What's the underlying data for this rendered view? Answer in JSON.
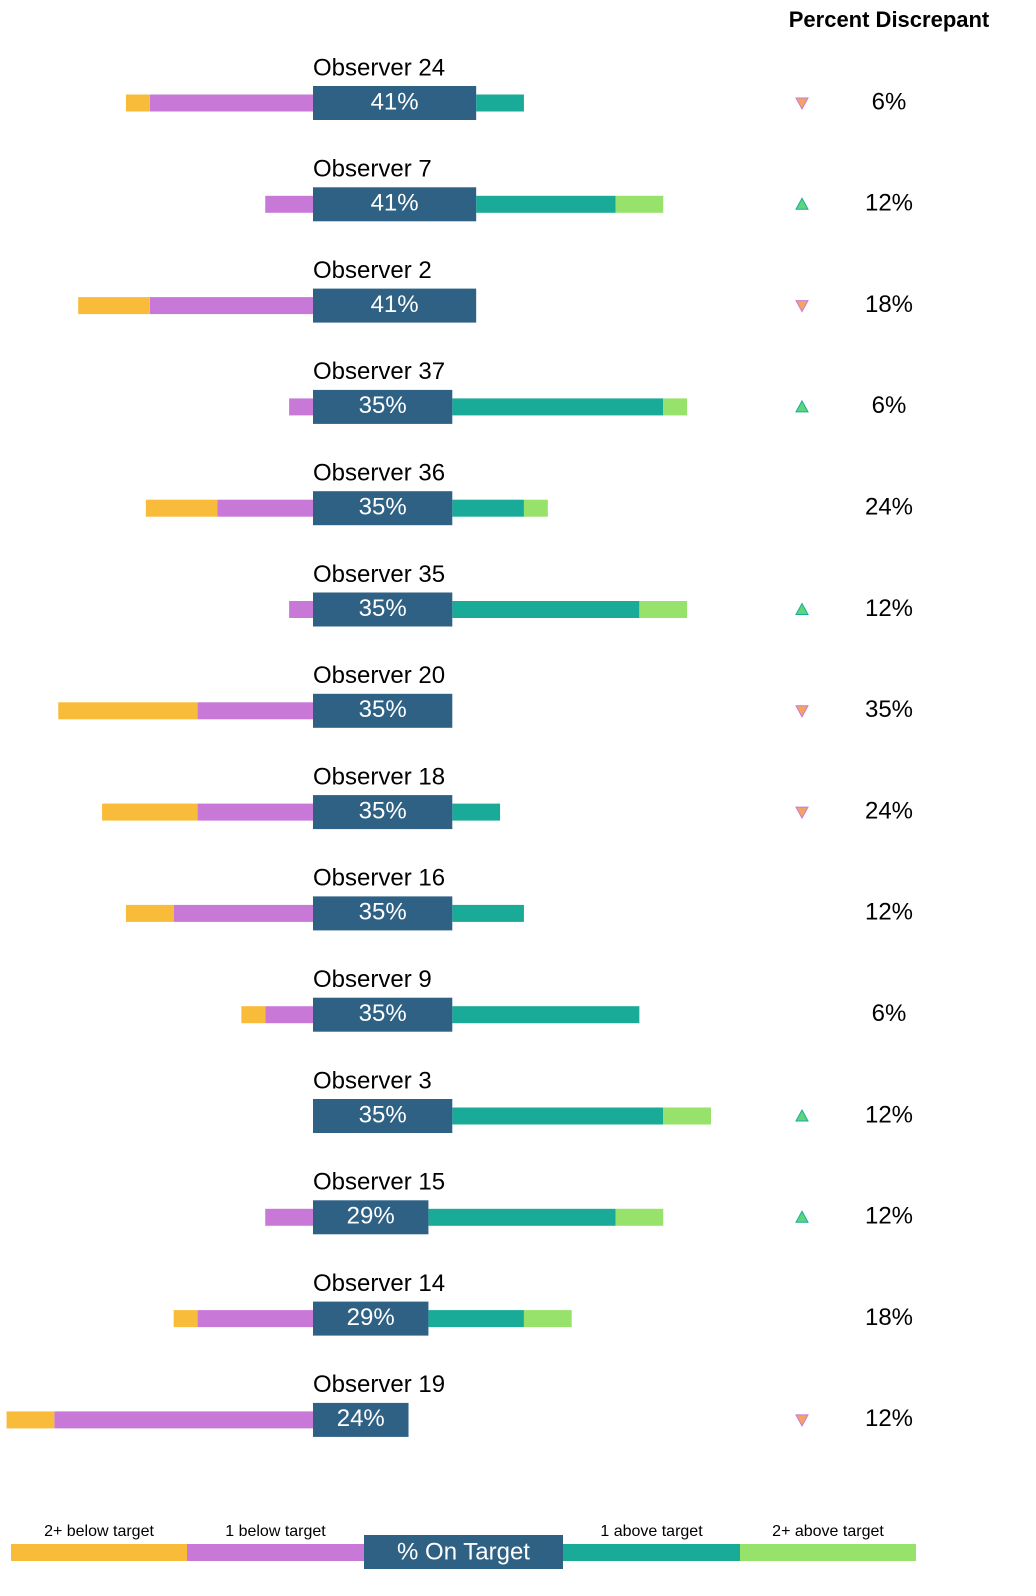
{
  "chart_data": {
    "type": "diverging_bar",
    "categories": [
      "Observer 24",
      "Observer 7",
      "Observer 2",
      "Observer 37",
      "Observer 36",
      "Observer 35",
      "Observer 20",
      "Observer 18",
      "Observer 16",
      "Observer 9",
      "Observer 3",
      "Observer 15",
      "Observer 14",
      "Observer 19"
    ],
    "series": [
      {
        "name": "2+ below target",
        "color": "#f8bc3a",
        "side": "below",
        "values": [
          6,
          0,
          18,
          0,
          18,
          0,
          35,
          24,
          12,
          6,
          0,
          0,
          6,
          12
        ]
      },
      {
        "name": "1 below target",
        "color": "#c879d8",
        "side": "below",
        "values": [
          41,
          12,
          41,
          6,
          24,
          6,
          29,
          29,
          35,
          12,
          0,
          12,
          29,
          65
        ]
      },
      {
        "name": "% On Target",
        "color": "#2e6184",
        "side": "target",
        "values": [
          41,
          41,
          41,
          35,
          35,
          35,
          35,
          35,
          35,
          35,
          35,
          29,
          29,
          24
        ],
        "value_labels": [
          "41%",
          "41%",
          "41%",
          "35%",
          "35%",
          "35%",
          "35%",
          "35%",
          "35%",
          "35%",
          "35%",
          "29%",
          "29%",
          "24%"
        ]
      },
      {
        "name": "1 above target",
        "color": "#1aab98",
        "side": "above",
        "values": [
          12,
          35,
          0,
          53,
          18,
          47,
          0,
          12,
          18,
          47,
          53,
          47,
          24,
          0
        ]
      },
      {
        "name": "2+ above target",
        "color": "#96e26a",
        "side": "above",
        "values": [
          0,
          12,
          0,
          6,
          6,
          12,
          0,
          0,
          0,
          0,
          12,
          12,
          12,
          0
        ]
      }
    ],
    "discrepant": {
      "name": "Percent Discrepant",
      "values": [
        6,
        12,
        18,
        6,
        24,
        12,
        35,
        24,
        12,
        6,
        12,
        12,
        18,
        12
      ],
      "value_labels": [
        "6%",
        "12%",
        "18%",
        "6%",
        "24%",
        "12%",
        "35%",
        "24%",
        "12%",
        "6%",
        "12%",
        "12%",
        "18%",
        "12%"
      ],
      "direction": [
        "down",
        "up",
        "down",
        "up",
        null,
        "up",
        "down",
        "down",
        null,
        null,
        "up",
        "up",
        null,
        "down"
      ],
      "up_color": "#5cd67a",
      "down_color": "#f4a460"
    }
  }
}
